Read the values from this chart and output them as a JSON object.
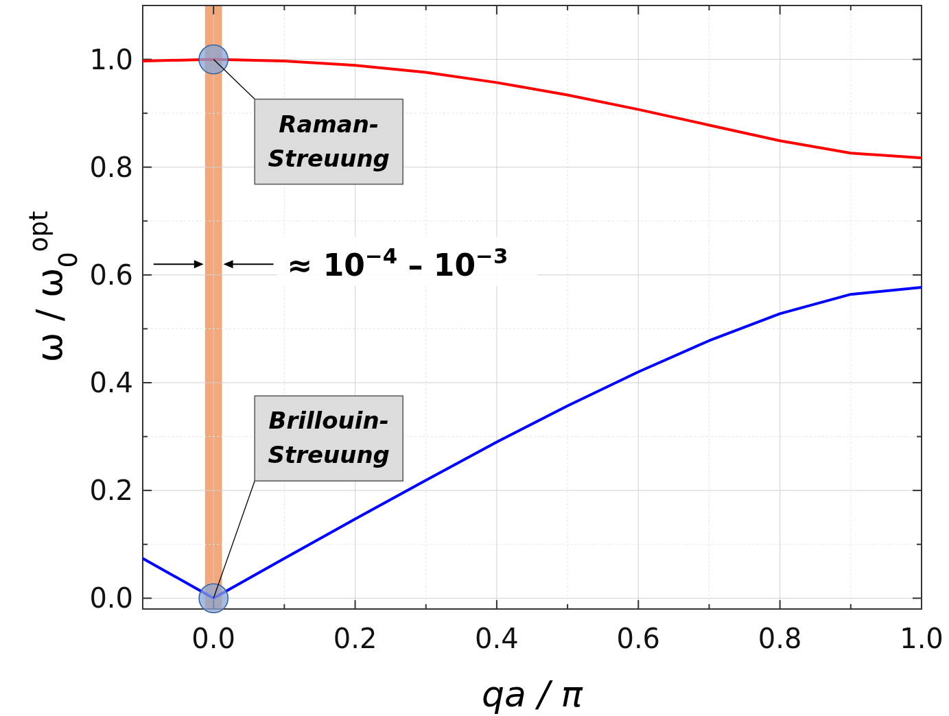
{
  "chart_data": {
    "type": "line",
    "xlabel": "qa / π",
    "ylabel": "ω / ω$_{0}$$^{opt}$",
    "xlim": [
      -0.1,
      1.0
    ],
    "ylim": [
      -0.02,
      1.1
    ],
    "xticks": [
      {
        "value": 0,
        "label": "0.0"
      },
      {
        "value": 0.2,
        "label": "0.2"
      },
      {
        "value": 0.4,
        "label": "0.4"
      },
      {
        "value": 0.6,
        "label": "0.6"
      },
      {
        "value": 0.8,
        "label": "0.8"
      },
      {
        "value": 1.0,
        "label": "1.0"
      },
      {
        "value": 0.1,
        "label": null
      },
      {
        "value": 0.3,
        "label": null
      },
      {
        "value": 0.5,
        "label": null
      },
      {
        "value": 0.7,
        "label": null
      },
      {
        "value": 0.9,
        "label": null
      }
    ],
    "yticks": [
      {
        "value": 0,
        "label": "0.0"
      },
      {
        "value": 0.2,
        "label": "0.2"
      },
      {
        "value": 0.4,
        "label": "0.4"
      },
      {
        "value": 0.6,
        "label": "0.6"
      },
      {
        "value": 0.8,
        "label": "0.8"
      },
      {
        "value": 1.0,
        "label": "1.0"
      },
      {
        "value": 0.1,
        "label": null
      },
      {
        "value": 0.3,
        "label": null
      },
      {
        "value": 0.5,
        "label": null
      },
      {
        "value": 0.7,
        "label": null
      },
      {
        "value": 0.9,
        "label": null
      }
    ],
    "grid": true,
    "line_style": "solid",
    "series": [
      {
        "color": "#ff0000",
        "x": [
          -0.1,
          0,
          0.1,
          0.2,
          0.3,
          0.4,
          0.5,
          0.6,
          0.7,
          0.8,
          0.9,
          1.0
        ],
        "values": [
          0.997,
          1.0,
          0.997,
          0.989,
          0.976,
          0.957,
          0.934,
          0.907,
          0.878,
          0.849,
          0.826,
          0.817
        ]
      },
      {
        "color": "#0000ff",
        "x": [
          -0.1,
          0,
          0.1,
          0.2,
          0.3,
          0.4,
          0.5,
          0.6,
          0.7,
          0.8,
          0.9,
          1.0
        ],
        "values": [
          0.074,
          0.0,
          0.074,
          0.147,
          0.219,
          0.29,
          0.357,
          0.42,
          0.478,
          0.528,
          0.564,
          0.577
        ]
      },
      {
        "type": "scatter",
        "color": "#8aa6d6",
        "marker": "circle",
        "x": [
          0,
          0
        ],
        "values": [
          1.0,
          0.0
        ]
      }
    ],
    "bands": [
      {
        "axis": "x",
        "from": -0.012,
        "to": 0.012,
        "color": "#ee9966",
        "label": "≈ 10$^{−4}$ – 10$^{−3}$"
      }
    ],
    "annotations": [
      {
        "text": "Raman-Streuung",
        "x": 0,
        "y": 1.0
      },
      {
        "text": "Brillouin-Streuung",
        "x": 0,
        "y": 0.0
      }
    ]
  }
}
